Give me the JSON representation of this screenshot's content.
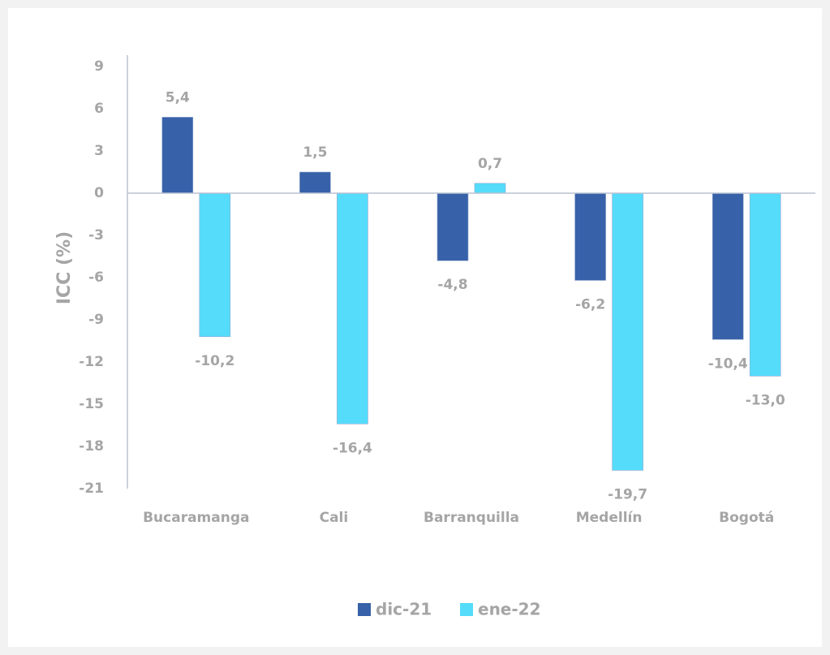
{
  "chart_data": {
    "type": "bar",
    "y_axis_label": "ICC (%)",
    "categories": [
      "Bucaramanga",
      "Cali",
      "Barranquilla",
      "Medellín",
      "Bogotá"
    ],
    "series": [
      {
        "name": "dic-21",
        "color": "#3761a8",
        "values": [
          5.4,
          1.5,
          -4.8,
          -6.2,
          -10.4
        ],
        "value_labels": [
          "5,4",
          "1,5",
          "-4,8",
          "-6,2",
          "-10,4"
        ]
      },
      {
        "name": "ene-22",
        "color": "#55dcfb",
        "values": [
          -10.2,
          -16.4,
          0.7,
          -19.7,
          -13.0
        ],
        "value_labels": [
          "-10,2",
          "-16,4",
          "0,7",
          "-19,7",
          "-13,0"
        ]
      }
    ],
    "ylim": [
      -21,
      9
    ],
    "yticks": [
      9,
      6,
      3,
      0,
      -3,
      -6,
      -9,
      -12,
      -15,
      -18,
      -21
    ],
    "grid": false,
    "legend": "bottom"
  }
}
